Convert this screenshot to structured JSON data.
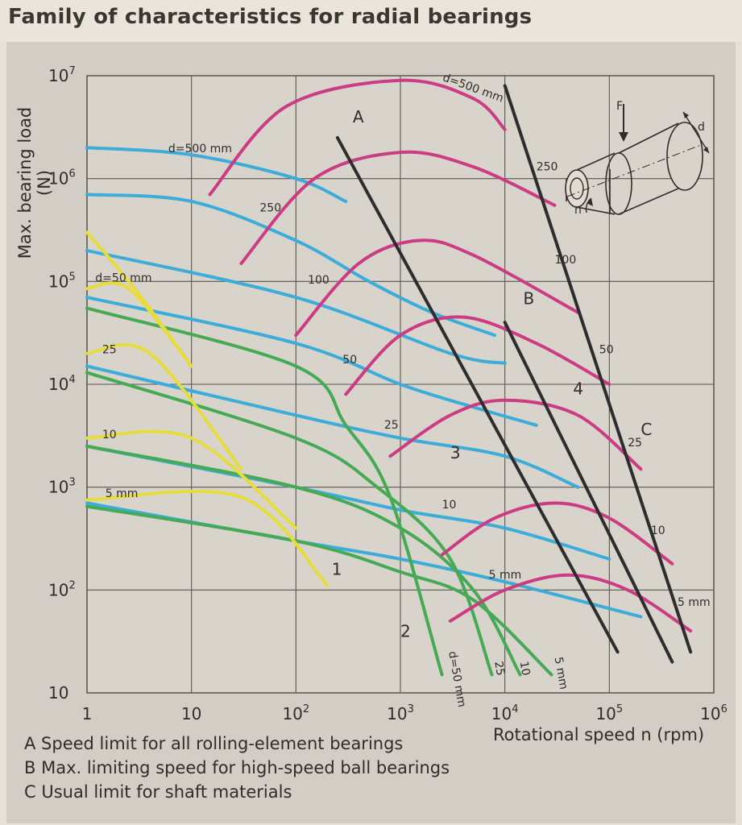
{
  "chart_data": {
    "type": "line",
    "title": "Family of characteristics for radial bearings",
    "xlabel": "Rotational speed n (rpm)",
    "ylabel": "Max. bearing load (N)",
    "xscale": "log",
    "yscale": "log",
    "xlim": [
      1,
      1000000
    ],
    "ylim": [
      10,
      10000000
    ],
    "grid": true,
    "x_ticks": [
      {
        "base": "1",
        "exp": ""
      },
      {
        "base": "10",
        "exp": ""
      },
      {
        "base": "10",
        "exp": "2"
      },
      {
        "base": "10",
        "exp": "3"
      },
      {
        "base": "10",
        "exp": "4"
      },
      {
        "base": "10",
        "exp": "5"
      },
      {
        "base": "10",
        "exp": "6"
      }
    ],
    "y_ticks": [
      {
        "base": "10",
        "exp": ""
      },
      {
        "base": "10",
        "exp": "2"
      },
      {
        "base": "10",
        "exp": "3"
      },
      {
        "base": "10",
        "exp": "4"
      },
      {
        "base": "10",
        "exp": "5"
      },
      {
        "base": "10",
        "exp": "6"
      },
      {
        "base": "10",
        "exp": "7"
      }
    ],
    "colors": {
      "curve1": "#e6dc3c",
      "curve2": "#46aa55",
      "curve3": "#cc3c82",
      "curve4": "#3cacd8",
      "limit": "#2d2d2d"
    },
    "series": [
      {
        "group": "1",
        "label": "d=50 mm",
        "points": [
          [
            1,
            300000
          ],
          [
            3,
            80000
          ],
          [
            10,
            15000
          ]
        ]
      },
      {
        "group": "1",
        "label": "25",
        "points": [
          [
            1,
            20000
          ],
          [
            4,
            20000
          ],
          [
            30,
            1500
          ]
        ]
      },
      {
        "group": "1",
        "label": "10",
        "points": [
          [
            1,
            3000
          ],
          [
            10,
            3000
          ],
          [
            100,
            400
          ]
        ]
      },
      {
        "group": "1",
        "label": "5 mm",
        "points": [
          [
            1,
            750
          ],
          [
            30,
            800
          ],
          [
            200,
            110
          ]
        ]
      },
      {
        "group": "1",
        "points": [
          [
            1,
            85000
          ],
          [
            2.5,
            85000
          ],
          [
            10,
            15000
          ]
        ]
      },
      {
        "group": "2",
        "label": "d=50 mm",
        "points": [
          [
            1,
            55000
          ],
          [
            100,
            15000
          ],
          [
            300,
            4000
          ],
          [
            800,
            800
          ],
          [
            2500,
            15
          ]
        ]
      },
      {
        "group": "2",
        "label": "25",
        "points": [
          [
            1,
            13000
          ],
          [
            100,
            3000
          ],
          [
            600,
            1000
          ],
          [
            3000,
            200
          ],
          [
            7500,
            15
          ]
        ]
      },
      {
        "group": "2",
        "label": "10",
        "points": [
          [
            1,
            2500
          ],
          [
            100,
            1000
          ],
          [
            1000,
            400
          ],
          [
            5000,
            100
          ],
          [
            14000,
            15
          ]
        ]
      },
      {
        "group": "2",
        "label": "5 mm",
        "points": [
          [
            1,
            650
          ],
          [
            100,
            300
          ],
          [
            1000,
            150
          ],
          [
            5000,
            80
          ],
          [
            28000,
            15
          ]
        ]
      },
      {
        "group": "3",
        "label": "d=500 mm",
        "points": [
          [
            15,
            700000
          ],
          [
            80,
            5000000
          ],
          [
            1000,
            9000000
          ],
          [
            5000,
            6000000
          ],
          [
            10000,
            3000000
          ]
        ]
      },
      {
        "group": "3",
        "label": "250",
        "points": [
          [
            30,
            150000
          ],
          [
            150,
            1000000
          ],
          [
            1000,
            1800000
          ],
          [
            5000,
            1300000
          ],
          [
            30000,
            550000
          ]
        ]
      },
      {
        "group": "3",
        "label": "100",
        "points": [
          [
            100,
            30000
          ],
          [
            400,
            150000
          ],
          [
            1500,
            250000
          ],
          [
            5000,
            180000
          ],
          [
            50000,
            50000
          ]
        ]
      },
      {
        "group": "3",
        "label": "50",
        "points": [
          [
            300,
            8000
          ],
          [
            1000,
            30000
          ],
          [
            4000,
            45000
          ],
          [
            20000,
            25000
          ],
          [
            100000,
            10000
          ]
        ]
      },
      {
        "group": "3",
        "label": "25",
        "points": [
          [
            800,
            2000
          ],
          [
            3000,
            5000
          ],
          [
            10000,
            7000
          ],
          [
            50000,
            5000
          ],
          [
            200000,
            1500
          ]
        ]
      },
      {
        "group": "3",
        "label": "10",
        "points": [
          [
            2500,
            220
          ],
          [
            8000,
            500
          ],
          [
            30000,
            700
          ],
          [
            100000,
            500
          ],
          [
            400000,
            180
          ]
        ]
      },
      {
        "group": "3",
        "label": "5 mm",
        "points": [
          [
            3000,
            50
          ],
          [
            10000,
            100
          ],
          [
            40000,
            140
          ],
          [
            150000,
            100
          ],
          [
            600000,
            40
          ]
        ]
      },
      {
        "group": "4",
        "label": "d=500 mm",
        "points": [
          [
            1,
            2000000
          ],
          [
            10,
            1700000
          ],
          [
            100,
            1000000
          ],
          [
            300,
            600000
          ]
        ]
      },
      {
        "group": "4",
        "label": "250",
        "points": [
          [
            1,
            700000
          ],
          [
            10,
            600000
          ],
          [
            100,
            250000
          ],
          [
            500,
            100000
          ],
          [
            2000,
            50000
          ],
          [
            8000,
            30000
          ]
        ]
      },
      {
        "group": "4",
        "label": "100",
        "points": [
          [
            1,
            200000
          ],
          [
            100,
            70000
          ],
          [
            3000,
            20000
          ],
          [
            10000,
            16000
          ]
        ]
      },
      {
        "group": "4",
        "label": "50",
        "points": [
          [
            1,
            70000
          ],
          [
            100,
            25000
          ],
          [
            1000,
            10000
          ],
          [
            5000,
            6000
          ],
          [
            20000,
            4000
          ]
        ]
      },
      {
        "group": "4",
        "label": "25",
        "points": [
          [
            1,
            15000
          ],
          [
            100,
            5000
          ],
          [
            1000,
            3000
          ],
          [
            10000,
            2000
          ],
          [
            50000,
            1000
          ]
        ]
      },
      {
        "group": "4",
        "label": "10",
        "points": [
          [
            1,
            2500
          ],
          [
            100,
            1000
          ],
          [
            1000,
            600
          ],
          [
            10000,
            400
          ],
          [
            100000,
            200
          ]
        ]
      },
      {
        "group": "4",
        "label": "5 mm",
        "points": [
          [
            1,
            700
          ],
          [
            100,
            300
          ],
          [
            1000,
            200
          ],
          [
            10000,
            120
          ],
          [
            200000,
            55
          ]
        ]
      },
      {
        "group": "limit",
        "label": "A",
        "points": [
          [
            250,
            2500000
          ],
          [
            120000,
            25
          ]
        ]
      },
      {
        "group": "limit",
        "label": "B",
        "points": [
          [
            10000,
            40000
          ],
          [
            400000,
            20
          ]
        ]
      },
      {
        "group": "limit",
        "label": "C",
        "points": [
          [
            10000,
            8000000
          ],
          [
            600000,
            25
          ]
        ]
      }
    ],
    "curve_labels": [
      {
        "series": 17,
        "text": "d=500 mm",
        "at": [
          6,
          1800000
        ],
        "color": "curve4"
      },
      {
        "series": 18,
        "text": "250",
        "at": [
          45,
          480000
        ],
        "color": "curve4"
      },
      {
        "series": 19,
        "text": "100",
        "at": [
          130,
          95000
        ],
        "color": "curve4"
      },
      {
        "series": 20,
        "text": "50",
        "at": [
          280,
          16000
        ],
        "color": "curve4"
      },
      {
        "series": 21,
        "text": "25",
        "at": [
          700,
          3700
        ],
        "color": "curve4"
      },
      {
        "series": 22,
        "text": "10",
        "at": [
          2500,
          620
        ],
        "color": "curve4"
      },
      {
        "series": 23,
        "text": "5 mm",
        "at": [
          7000,
          130
        ],
        "color": "curve4"
      },
      {
        "series": 0,
        "text": "d=50 mm",
        "at": [
          1.2,
          100000
        ],
        "color": "curve1"
      },
      {
        "series": 1,
        "text": "25",
        "at": [
          1.4,
          20000
        ],
        "color": "curve1"
      },
      {
        "series": 2,
        "text": "10",
        "at": [
          1.4,
          3000
        ],
        "color": "curve1"
      },
      {
        "series": 3,
        "text": "5 mm",
        "at": [
          1.5,
          800
        ],
        "color": "curve1"
      },
      {
        "series": 9,
        "text": "d=500 mm",
        "at": [
          2500,
          9000000
        ],
        "color": "curve3"
      },
      {
        "series": 10,
        "text": "250",
        "at": [
          20000,
          1200000
        ],
        "color": "curve3"
      },
      {
        "series": 11,
        "text": "100",
        "at": [
          30000,
          150000
        ],
        "color": "curve3"
      },
      {
        "series": 12,
        "text": "50",
        "at": [
          80000,
          20000
        ],
        "color": "curve3"
      },
      {
        "series": 13,
        "text": "25",
        "at": [
          150000,
          2500
        ],
        "color": "curve3"
      },
      {
        "series": 14,
        "text": "10",
        "at": [
          250000,
          350
        ],
        "color": "curve3"
      },
      {
        "series": 15,
        "text": "5 mm",
        "at": [
          450000,
          70
        ],
        "color": "curve3"
      },
      {
        "series": 5,
        "text": "d=50 mm",
        "at": [
          2900,
          25
        ],
        "color": "curve2"
      },
      {
        "series": 6,
        "text": "25",
        "at": [
          8000,
          20
        ],
        "color": "curve2"
      },
      {
        "series": 7,
        "text": "10",
        "at": [
          14000,
          20
        ],
        "color": "curve2"
      },
      {
        "series": 8,
        "text": "5 mm",
        "at": [
          30000,
          22
        ],
        "color": "curve2"
      }
    ],
    "markers": [
      {
        "text": "A",
        "at": [
          350,
          3500000
        ]
      },
      {
        "text": "B",
        "at": [
          15000,
          60000
        ]
      },
      {
        "text": "C",
        "at": [
          200000,
          3200
        ]
      },
      {
        "text": "1",
        "at": [
          220,
          140
        ]
      },
      {
        "text": "2",
        "at": [
          1000,
          35
        ]
      },
      {
        "text": "3",
        "at": [
          3000,
          1900
        ]
      },
      {
        "text": "4",
        "at": [
          45000,
          8000
        ]
      }
    ],
    "legend": [
      {
        "key": "A",
        "text": "A Speed limit for all rolling-element bearings"
      },
      {
        "key": "B",
        "text": "B Max. limiting speed for high-speed ball bearings"
      },
      {
        "key": "C",
        "text": "C Usual limit for shaft materials"
      }
    ],
    "inset": {
      "labels": [
        "F",
        "d",
        "n"
      ]
    }
  }
}
